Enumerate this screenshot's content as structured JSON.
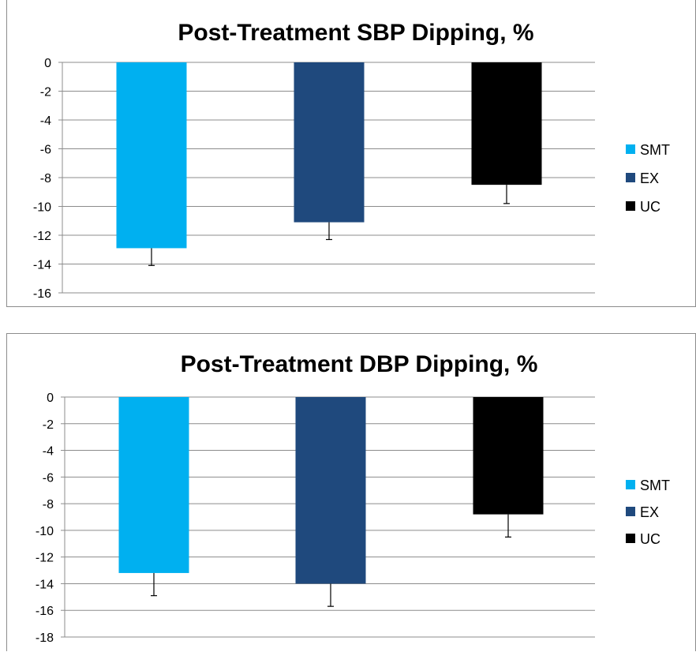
{
  "chart_data": [
    {
      "type": "bar",
      "title": "Post-Treatment SBP Dipping, %",
      "xlabel": "",
      "ylabel": "",
      "categories": [
        "SMT",
        "EX",
        "UC"
      ],
      "values": [
        -12.9,
        -11.1,
        -8.5
      ],
      "error_bars": [
        1.2,
        1.2,
        1.3
      ],
      "colors": [
        "#00b0f0",
        "#1f497d",
        "#000000"
      ],
      "ylim": [
        -16,
        0
      ],
      "ytick_step": 2,
      "yticks": [
        "0",
        "-2",
        "-4",
        "-6",
        "-8",
        "-10",
        "-12",
        "-14",
        "-16"
      ],
      "grid": true,
      "legend": {
        "placement": "right",
        "entries": [
          "SMT",
          "EX",
          "UC"
        ]
      }
    },
    {
      "type": "bar",
      "title": "Post-Treatment DBP Dipping, %",
      "xlabel": "",
      "ylabel": "",
      "categories": [
        "SMT",
        "EX",
        "UC"
      ],
      "values": [
        -13.2,
        -14.0,
        -8.8
      ],
      "error_bars": [
        1.7,
        1.7,
        1.7
      ],
      "colors": [
        "#00b0f0",
        "#1f497d",
        "#000000"
      ],
      "ylim": [
        -18,
        0
      ],
      "ytick_step": 2,
      "yticks": [
        "0",
        "-2",
        "-4",
        "-6",
        "-8",
        "-10",
        "-12",
        "-14",
        "-16",
        "-18"
      ],
      "grid": true,
      "legend": {
        "placement": "right",
        "entries": [
          "SMT",
          "EX",
          "UC"
        ]
      }
    }
  ]
}
